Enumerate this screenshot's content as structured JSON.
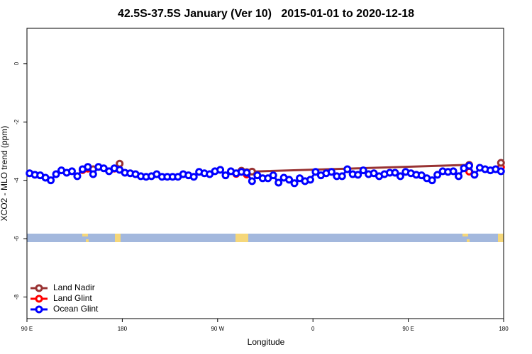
{
  "chart_data": {
    "type": "line",
    "title": "42.5S-37.5S January (Ver 10)   2015-01-01 to 2020-12-18",
    "x_label": "Longitude",
    "y_label": "XCO2 - MLO trend (ppm)",
    "xlim": [
      90,
      540
    ],
    "ylim": [
      -8.74,
      1.21
    ],
    "xticks": [
      {
        "value": 90,
        "label": "90 E"
      },
      {
        "value": 180,
        "label": "180"
      },
      {
        "value": 270,
        "label": "90 W"
      },
      {
        "value": 360,
        "label": "0"
      },
      {
        "value": 450,
        "label": "90 E"
      },
      {
        "value": 540,
        "label": "180"
      }
    ],
    "yticks": [
      0,
      -2,
      -4,
      -6,
      -8
    ],
    "legend": "bottomleft",
    "series": [
      {
        "name": "Land Glint",
        "color": "#ff0000",
        "x": [
          142.5,
          147.5,
          152.5,
          172.5,
          177.5,
          282.5,
          287.5,
          292.5,
          297.5,
          502.5,
          507.5,
          512.5,
          537.5
        ],
        "values": [
          -3.65,
          -3.6,
          null,
          -3.6,
          null,
          null,
          -3.78,
          null,
          -3.8,
          null,
          -3.7,
          null,
          -3.55
        ]
      },
      {
        "name": "Land Nadir",
        "color": "#993333",
        "x": [
          147.5,
          152.5,
          157.5,
          177.5,
          182.5,
          292.5,
          297.5,
          302.5,
          507.5,
          512.5,
          537.5
        ],
        "values": [
          -3.55,
          -3.62,
          null,
          -3.43,
          null,
          -3.67,
          -3.72,
          -3.7,
          -3.47,
          null,
          -3.4
        ]
      },
      {
        "name": "Ocean Glint",
        "color": "#0000ff",
        "x": [
          92.5,
          97.5,
          102.5,
          107.5,
          112.5,
          117.5,
          122.5,
          127.5,
          132.5,
          137.5,
          142.5,
          147.5,
          152.5,
          157.5,
          162.5,
          167.5,
          172.5,
          177.5,
          182.5,
          187.5,
          192.5,
          197.5,
          202.5,
          207.5,
          212.5,
          217.5,
          222.5,
          227.5,
          232.5,
          237.5,
          242.5,
          247.5,
          252.5,
          257.5,
          262.5,
          267.5,
          272.5,
          277.5,
          282.5,
          287.5,
          292.5,
          297.5,
          302.5,
          307.5,
          312.5,
          317.5,
          322.5,
          327.5,
          332.5,
          337.5,
          342.5,
          347.5,
          352.5,
          357.5,
          362.5,
          367.5,
          372.5,
          377.5,
          382.5,
          387.5,
          392.5,
          397.5,
          402.5,
          407.5,
          412.5,
          417.5,
          422.5,
          427.5,
          432.5,
          437.5,
          442.5,
          447.5,
          452.5,
          457.5,
          462.5,
          467.5,
          472.5,
          477.5,
          482.5,
          487.5,
          492.5,
          497.5,
          502.5,
          507.5,
          512.5,
          517.5,
          522.5,
          527.5,
          532.5,
          537.5
        ],
        "values": [
          -3.76,
          -3.81,
          -3.83,
          -3.91,
          -4.0,
          -3.79,
          -3.66,
          -3.74,
          -3.69,
          -3.86,
          -3.62,
          -3.54,
          -3.79,
          -3.54,
          -3.59,
          -3.69,
          -3.59,
          -3.64,
          -3.74,
          -3.76,
          -3.79,
          -3.86,
          -3.88,
          -3.86,
          -3.79,
          -3.88,
          -3.88,
          -3.88,
          -3.88,
          -3.79,
          -3.83,
          -3.88,
          -3.71,
          -3.76,
          -3.79,
          -3.69,
          -3.64,
          -3.83,
          -3.69,
          -3.76,
          -3.71,
          -3.74,
          -4.03,
          -3.83,
          -3.93,
          -3.93,
          -3.83,
          -4.08,
          -3.91,
          -3.98,
          -4.1,
          -3.93,
          -4.03,
          -3.98,
          -3.71,
          -3.83,
          -3.76,
          -3.71,
          -3.86,
          -3.86,
          -3.62,
          -3.79,
          -3.81,
          -3.66,
          -3.79,
          -3.76,
          -3.86,
          -3.79,
          -3.74,
          -3.74,
          -3.86,
          -3.71,
          -3.76,
          -3.81,
          -3.83,
          -3.93,
          -4.0,
          -3.81,
          -3.69,
          -3.71,
          -3.69,
          -3.86,
          -3.59,
          -3.5,
          -3.81,
          -3.57,
          -3.62,
          -3.66,
          -3.62,
          -3.69
        ]
      }
    ]
  }
}
